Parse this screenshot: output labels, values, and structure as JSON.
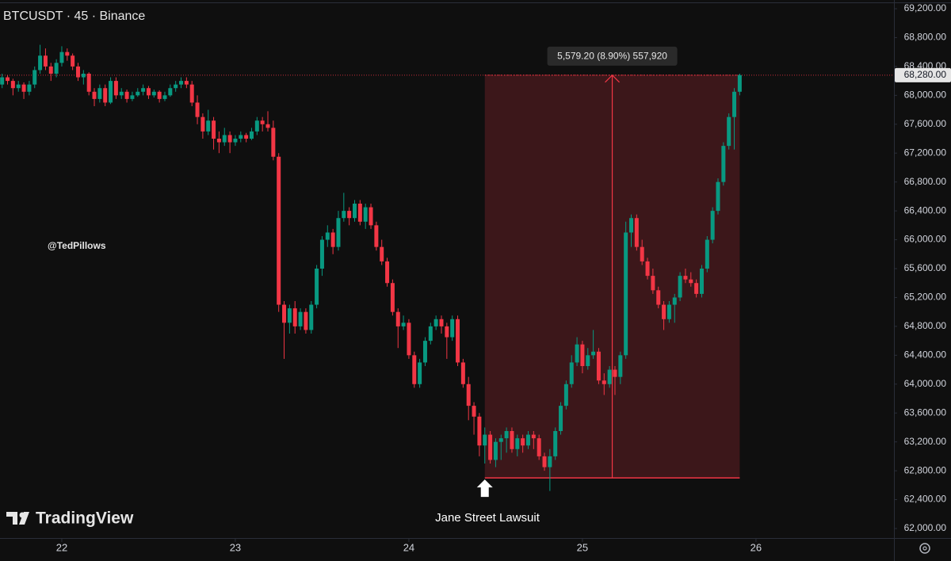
{
  "chart_data": {
    "type": "candlestick",
    "title": "BTCUSDT · 45 · Binance",
    "watermark": "@TedPillows",
    "logo_text": "TradingView",
    "up_color": "#089981",
    "down_color": "#f23645",
    "xlim": [
      21.644,
      26.795
    ],
    "xticks": [
      22,
      23,
      24,
      25,
      26
    ],
    "ylim": [
      62000,
      69200
    ],
    "yticks": [
      {
        "value": 62000,
        "label": "62,000.00"
      },
      {
        "value": 62400,
        "label": "62,400.00"
      },
      {
        "value": 62800,
        "label": "62,800.00"
      },
      {
        "value": 63200,
        "label": "63,200.00"
      },
      {
        "value": 63600,
        "label": "63,600.00"
      },
      {
        "value": 64000,
        "label": "64,000.00"
      },
      {
        "value": 64400,
        "label": "64,400.00"
      },
      {
        "value": 64800,
        "label": "64,800.00"
      },
      {
        "value": 65200,
        "label": "65,200.00"
      },
      {
        "value": 65600,
        "label": "65,600.00"
      },
      {
        "value": 66000,
        "label": "66,000.00"
      },
      {
        "value": 66400,
        "label": "66,400.00"
      },
      {
        "value": 66800,
        "label": "66,800.00"
      },
      {
        "value": 67200,
        "label": "67,200.00"
      },
      {
        "value": 67600,
        "label": "67,600.00"
      },
      {
        "value": 68000,
        "label": "68,000.00"
      },
      {
        "value": 68400,
        "label": "68,400.00"
      },
      {
        "value": 68800,
        "label": "68,800.00"
      },
      {
        "value": 69200,
        "label": "69,200.00"
      }
    ],
    "last_price": {
      "value": 68280,
      "label": "68,280.00"
    },
    "measure": {
      "x0": 24.4375,
      "x1": 25.90625,
      "low": 62700.8,
      "high": 68280,
      "label": "5,579.20 (8.90%) 557,920"
    },
    "annotation": {
      "text": "Jane Street Lawsuit",
      "x": 24.4375
    },
    "x": [
      21.65625,
      21.6875,
      21.71875,
      21.75,
      21.78125,
      21.8125,
      21.84375,
      21.875,
      21.90625,
      21.9375,
      21.96875,
      22,
      22.03125,
      22.0625,
      22.09375,
      22.125,
      22.15625,
      22.1875,
      22.21875,
      22.25,
      22.28125,
      22.3125,
      22.34375,
      22.375,
      22.40625,
      22.4375,
      22.46875,
      22.5,
      22.53125,
      22.5625,
      22.59375,
      22.625,
      22.65625,
      22.6875,
      22.71875,
      22.75,
      22.78125,
      22.8125,
      22.84375,
      22.875,
      22.90625,
      22.9375,
      22.96875,
      23,
      23.03125,
      23.0625,
      23.09375,
      23.125,
      23.15625,
      23.1875,
      23.21875,
      23.25,
      23.28125,
      23.3125,
      23.34375,
      23.375,
      23.40625,
      23.4375,
      23.46875,
      23.5,
      23.53125,
      23.5625,
      23.59375,
      23.625,
      23.65625,
      23.6875,
      23.71875,
      23.75,
      23.78125,
      23.8125,
      23.84375,
      23.875,
      23.90625,
      23.9375,
      23.96875,
      24,
      24.03125,
      24.0625,
      24.09375,
      24.125,
      24.15625,
      24.1875,
      24.21875,
      24.25,
      24.28125,
      24.3125,
      24.34375,
      24.375,
      24.40625,
      24.4375,
      24.46875,
      24.5,
      24.53125,
      24.5625,
      24.59375,
      24.625,
      24.65625,
      24.6875,
      24.71875,
      24.75,
      24.78125,
      24.8125,
      24.84375,
      24.875,
      24.90625,
      24.9375,
      24.96875,
      25,
      25.03125,
      25.0625,
      25.09375,
      25.125,
      25.15625,
      25.1875,
      25.21875,
      25.25,
      25.28125,
      25.3125,
      25.34375,
      25.375,
      25.40625,
      25.4375,
      25.46875,
      25.5,
      25.53125,
      25.5625,
      25.59375,
      25.625,
      25.65625,
      25.6875,
      25.71875,
      25.75,
      25.78125,
      25.8125,
      25.84375,
      25.875,
      25.90625
    ],
    "ohlc": [
      [
        68150,
        68300,
        68100,
        68250
      ],
      [
        68250,
        68280,
        68150,
        68200
      ],
      [
        68200,
        68230,
        68000,
        68100
      ],
      [
        68100,
        68200,
        68050,
        68150
      ],
      [
        68150,
        68180,
        67950,
        68050
      ],
      [
        68050,
        68200,
        68000,
        68150
      ],
      [
        68150,
        68400,
        68100,
        68350
      ],
      [
        68350,
        68700,
        68300,
        68550
      ],
      [
        68550,
        68650,
        68350,
        68400
      ],
      [
        68400,
        68450,
        68200,
        68300
      ],
      [
        68300,
        68500,
        68250,
        68450
      ],
      [
        68450,
        68680,
        68400,
        68600
      ],
      [
        68600,
        68650,
        68480,
        68550
      ],
      [
        68550,
        68580,
        68350,
        68400
      ],
      [
        68400,
        68450,
        68200,
        68250
      ],
      [
        68250,
        68350,
        68150,
        68300
      ],
      [
        68300,
        68320,
        68000,
        68050
      ],
      [
        68050,
        68100,
        67850,
        67950
      ],
      [
        67950,
        68150,
        67900,
        68100
      ],
      [
        68100,
        68150,
        67850,
        67900
      ],
      [
        67900,
        68250,
        67880,
        68200
      ],
      [
        68200,
        68250,
        67950,
        68000
      ],
      [
        68000,
        68100,
        67950,
        68050
      ],
      [
        68050,
        68080,
        67900,
        67950
      ],
      [
        67950,
        68050,
        67920,
        68000
      ],
      [
        68000,
        68100,
        67980,
        68050
      ],
      [
        68050,
        68150,
        68000,
        68100
      ],
      [
        68100,
        68130,
        67950,
        68000
      ],
      [
        68000,
        68080,
        67970,
        68050
      ],
      [
        68050,
        68070,
        67900,
        67950
      ],
      [
        67950,
        68050,
        67920,
        68000
      ],
      [
        68000,
        68150,
        67980,
        68100
      ],
      [
        68100,
        68200,
        68050,
        68150
      ],
      [
        68150,
        68250,
        68100,
        68200
      ],
      [
        68200,
        68250,
        68100,
        68150
      ],
      [
        68150,
        68200,
        67850,
        67900
      ],
      [
        67900,
        68000,
        67600,
        67700
      ],
      [
        67700,
        67750,
        67400,
        67500
      ],
      [
        67500,
        67800,
        67450,
        67650
      ],
      [
        67650,
        67700,
        67250,
        67400
      ],
      [
        67400,
        67500,
        67200,
        67350
      ],
      [
        67350,
        67550,
        67300,
        67450
      ],
      [
        67450,
        67500,
        67200,
        67350
      ],
      [
        67350,
        67450,
        67300,
        67400
      ],
      [
        67400,
        67500,
        67350,
        67450
      ],
      [
        67450,
        67480,
        67350,
        67400
      ],
      [
        67400,
        67550,
        67380,
        67500
      ],
      [
        67500,
        67700,
        67450,
        67650
      ],
      [
        67650,
        67700,
        67500,
        67600
      ],
      [
        67600,
        67780,
        67500,
        67550
      ],
      [
        67550,
        67650,
        67100,
        67150
      ],
      [
        67150,
        67200,
        65000,
        65100
      ],
      [
        65100,
        65150,
        64350,
        64850
      ],
      [
        64850,
        65100,
        64700,
        65050
      ],
      [
        65050,
        65150,
        64700,
        64800
      ],
      [
        64800,
        65050,
        64750,
        65000
      ],
      [
        65000,
        65050,
        64700,
        64750
      ],
      [
        64750,
        65150,
        64700,
        65100
      ],
      [
        65100,
        65650,
        65050,
        65600
      ],
      [
        65600,
        66050,
        65500,
        66000
      ],
      [
        66000,
        66200,
        65900,
        66100
      ],
      [
        66100,
        66150,
        65800,
        65900
      ],
      [
        65900,
        66400,
        65850,
        66300
      ],
      [
        66300,
        66650,
        66250,
        66400
      ],
      [
        66400,
        66450,
        66200,
        66300
      ],
      [
        66300,
        66550,
        66250,
        66500
      ],
      [
        66500,
        66550,
        66200,
        66250
      ],
      [
        66250,
        66500,
        66150,
        66450
      ],
      [
        66450,
        66500,
        66150,
        66200
      ],
      [
        66200,
        66250,
        65850,
        65900
      ],
      [
        65900,
        66000,
        65650,
        65700
      ],
      [
        65700,
        65750,
        65350,
        65400
      ],
      [
        65400,
        65450,
        64950,
        65000
      ],
      [
        65000,
        65050,
        64500,
        64800
      ],
      [
        64800,
        64950,
        64750,
        64850
      ],
      [
        64850,
        64900,
        64350,
        64400
      ],
      [
        64400,
        64450,
        63950,
        64000
      ],
      [
        64000,
        64350,
        63950,
        64300
      ],
      [
        64300,
        64650,
        64250,
        64600
      ],
      [
        64600,
        64850,
        64550,
        64800
      ],
      [
        64800,
        64950,
        64750,
        64900
      ],
      [
        64900,
        64950,
        64700,
        64800
      ],
      [
        64800,
        64850,
        64350,
        64650
      ],
      [
        64650,
        64950,
        64600,
        64900
      ],
      [
        64900,
        64950,
        64250,
        64300
      ],
      [
        64300,
        64350,
        63950,
        64000
      ],
      [
        64000,
        64100,
        63500,
        63700
      ],
      [
        63700,
        63750,
        63300,
        63550
      ],
      [
        63550,
        63600,
        63000,
        63150
      ],
      [
        63150,
        63400,
        62900,
        63300
      ],
      [
        63300,
        63350,
        62900,
        62950
      ],
      [
        62950,
        63250,
        62850,
        63200
      ],
      [
        63200,
        63300,
        62950,
        63250
      ],
      [
        63250,
        63400,
        63050,
        63350
      ],
      [
        63350,
        63400,
        63050,
        63100
      ],
      [
        63100,
        63300,
        63000,
        63250
      ],
      [
        63250,
        63300,
        63050,
        63150
      ],
      [
        63150,
        63350,
        63100,
        63300
      ],
      [
        63300,
        63350,
        63100,
        63250
      ],
      [
        63250,
        63300,
        62950,
        63000
      ],
      [
        63000,
        63050,
        62800,
        62850
      ],
      [
        62850,
        63100,
        62520,
        63000
      ],
      [
        63000,
        63400,
        62950,
        63350
      ],
      [
        63350,
        63750,
        63300,
        63700
      ],
      [
        63700,
        64050,
        63650,
        64000
      ],
      [
        64000,
        64400,
        63950,
        64300
      ],
      [
        64300,
        64650,
        64250,
        64550
      ],
      [
        64550,
        64600,
        64150,
        64250
      ],
      [
        64250,
        64500,
        64200,
        64400
      ],
      [
        64400,
        64750,
        64350,
        64450
      ],
      [
        64450,
        64500,
        64000,
        64050
      ],
      [
        64050,
        64150,
        63850,
        64000
      ],
      [
        64000,
        64250,
        63950,
        64200
      ],
      [
        64200,
        64250,
        63850,
        64100
      ],
      [
        64100,
        64450,
        64000,
        64400
      ],
      [
        64400,
        66250,
        64350,
        66100
      ],
      [
        66100,
        66350,
        65900,
        66300
      ],
      [
        66300,
        66350,
        65850,
        65900
      ],
      [
        65900,
        66000,
        65650,
        65700
      ],
      [
        65700,
        65750,
        65450,
        65500
      ],
      [
        65500,
        65600,
        65250,
        65300
      ],
      [
        65300,
        65350,
        65050,
        65100
      ],
      [
        65100,
        65150,
        64750,
        64900
      ],
      [
        64900,
        65150,
        64850,
        65100
      ],
      [
        65100,
        65250,
        64850,
        65200
      ],
      [
        65200,
        65550,
        65150,
        65500
      ],
      [
        65500,
        65600,
        65400,
        65450
      ],
      [
        65450,
        65550,
        65350,
        65400
      ],
      [
        65400,
        65450,
        65200,
        65250
      ],
      [
        65250,
        65650,
        65200,
        65600
      ],
      [
        65600,
        66050,
        65550,
        66000
      ],
      [
        66000,
        66450,
        65950,
        66400
      ],
      [
        66400,
        66850,
        66350,
        66800
      ],
      [
        66800,
        67350,
        66750,
        67300
      ],
      [
        67300,
        67750,
        67250,
        67700
      ],
      [
        67700,
        68100,
        67250,
        68050
      ],
      [
        68050,
        68300,
        68000,
        68280
      ]
    ]
  }
}
